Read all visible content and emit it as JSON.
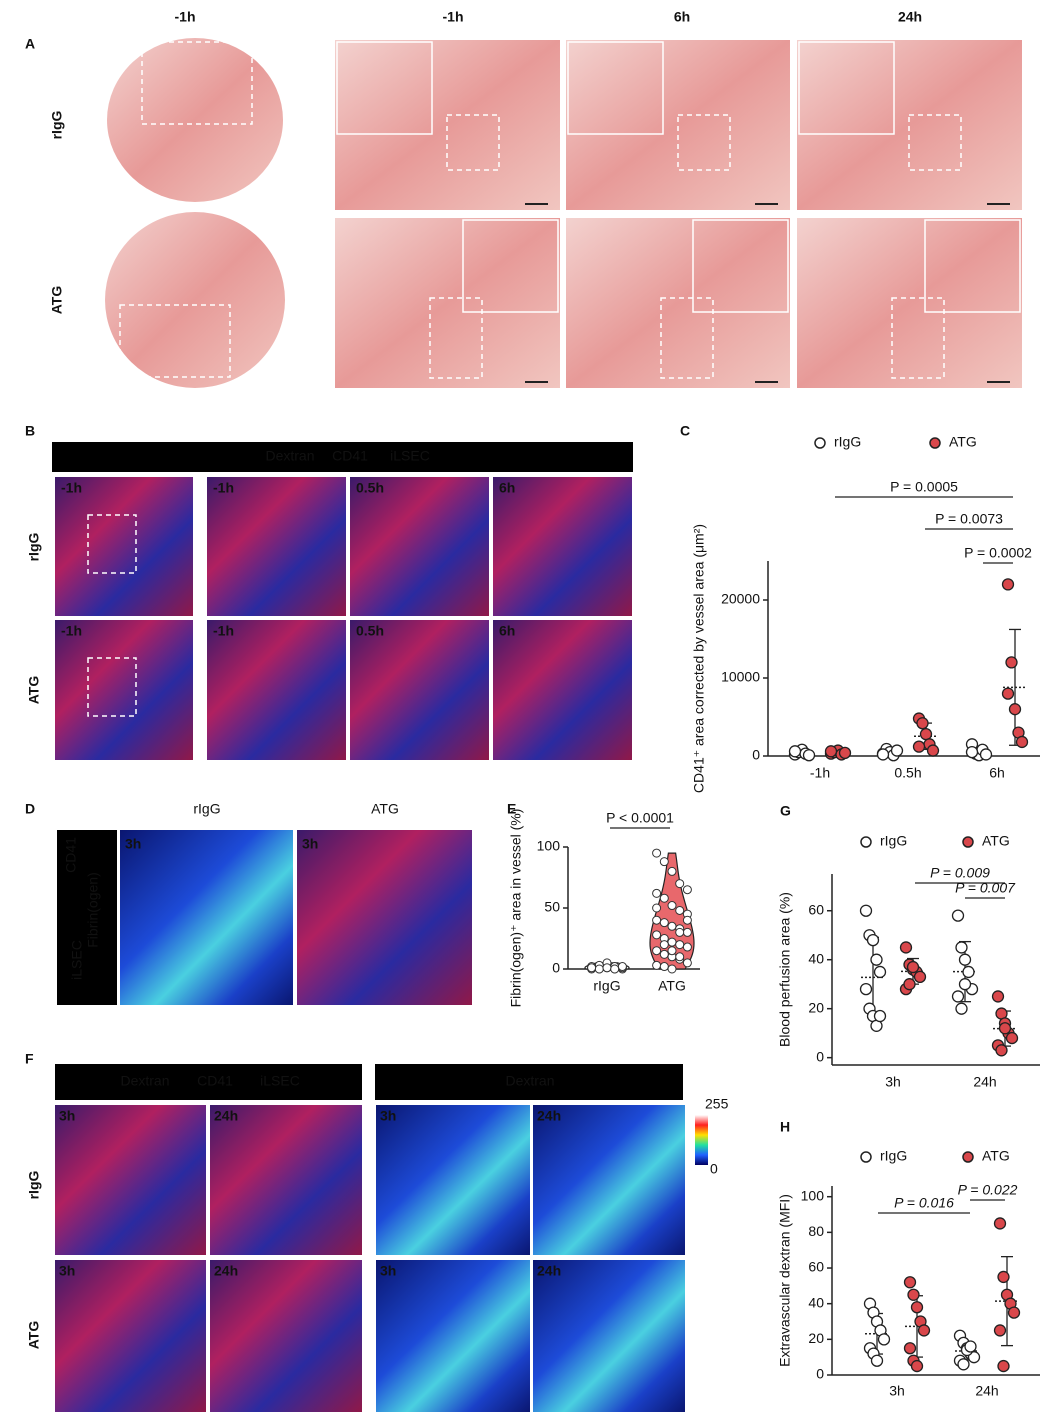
{
  "panels": {
    "A": {
      "letter": "A",
      "rows": [
        "rIgG",
        "ATG"
      ],
      "columns": [
        "-1h",
        "-1h",
        "6h",
        "24h"
      ]
    },
    "B": {
      "letter": "B",
      "stains": [
        "Dextran",
        "CD41",
        "iLSEC"
      ],
      "rows": [
        "rIgG",
        "ATG"
      ],
      "time_labels": [
        [
          "-1h",
          "-1h",
          "0.5h",
          "6h"
        ],
        [
          "-1h",
          "-1h",
          "0.5h",
          "6h"
        ]
      ]
    },
    "C": {
      "letter": "C"
    },
    "D": {
      "letter": "D",
      "columns": [
        "rIgG",
        "ATG"
      ],
      "stains": [
        "iLSEC",
        "Fibrin(ogen)",
        "CD41"
      ],
      "time_labels": [
        "3h",
        "3h"
      ]
    },
    "E": {
      "letter": "E"
    },
    "F": {
      "letter": "F",
      "stains": [
        "Dextran",
        "CD41",
        "iLSEC"
      ],
      "heatmap_title": "Dextran",
      "colorbar_range": [
        0,
        255
      ],
      "rows": [
        "rIgG",
        "ATG"
      ],
      "time_labels": [
        [
          "3h",
          "24h",
          "3h",
          "24h"
        ],
        [
          "3h",
          "24h",
          "3h",
          "24h"
        ]
      ]
    },
    "G": {
      "letter": "G"
    },
    "H": {
      "letter": "H"
    }
  },
  "chart_data": [
    {
      "type": "dot",
      "ylabel": "CD41⁺ area corrected by vessel area (μm²)",
      "categories": [
        "-1h",
        "0.5h",
        "6h"
      ],
      "series": [
        {
          "name": "rIgG",
          "color": "#ffffff",
          "values": [
            [
              200,
              500,
              800,
              300,
              100,
              600
            ],
            [
              300,
              900,
              500,
              100,
              700,
              200
            ],
            [
              1500,
              300,
              100,
              800,
              200,
              500
            ]
          ]
        },
        {
          "name": "ATG",
          "color": "#d9474b",
          "values": [
            [
              300,
              500,
              700,
              200,
              400,
              600
            ],
            [
              4800,
              4200,
              2800,
              1500,
              700,
              1200
            ],
            [
              22000,
              12000,
              6000,
              3000,
              1800,
              8000
            ]
          ]
        }
      ],
      "ylim": [
        0,
        25000
      ],
      "yticks": [
        0,
        10000,
        20000
      ],
      "annotations": [
        "P = 0.0005",
        "P = 0.0073",
        "P = 0.0002"
      ]
    },
    {
      "type": "violin",
      "ylabel": "Fibrin(ogen)⁺ area in vessel (%)",
      "categories": [
        "rIgG",
        "ATG"
      ],
      "colors": [
        "#ffffff",
        "#e8686c"
      ],
      "values": [
        [
          0,
          0,
          1,
          2,
          0,
          1,
          3,
          5,
          0,
          1,
          2,
          0,
          1,
          0,
          2,
          1
        ],
        [
          95,
          88,
          80,
          70,
          65,
          62,
          58,
          52,
          48,
          45,
          40,
          38,
          35,
          33,
          30,
          28,
          25,
          22,
          20,
          18,
          15,
          12,
          10,
          8,
          5,
          3,
          2,
          0,
          30,
          40,
          50,
          20,
          15,
          10
        ]
      ],
      "ylim": [
        0,
        100
      ],
      "yticks": [
        0,
        50,
        100
      ],
      "annotations": [
        "P < 0.0001"
      ]
    },
    {
      "type": "dot",
      "ylabel": "Blood perfusion area (%)",
      "categories": [
        "3h",
        "24h"
      ],
      "series": [
        {
          "name": "rIgG",
          "color": "#ffffff",
          "values": [
            [
              60,
              50,
              48,
              40,
              35,
              28,
              20,
              17,
              13,
              17
            ],
            [
              58,
              45,
              40,
              35,
              28,
              25,
              20,
              30
            ]
          ]
        },
        {
          "name": "ATG",
          "color": "#d9474b",
          "values": [
            [
              45,
              38,
              36,
              35,
              33,
              28,
              30,
              37
            ],
            [
              25,
              18,
              14,
              10,
              8,
              5,
              3,
              12
            ]
          ]
        }
      ],
      "ylim": [
        -3,
        75
      ],
      "yticks": [
        0,
        20,
        40,
        60
      ],
      "annotations": [
        "P = 0.009",
        "P = 0.007"
      ]
    },
    {
      "type": "dot",
      "ylabel": "Extravascular dextran (MFI)",
      "categories": [
        "3h",
        "24h"
      ],
      "series": [
        {
          "name": "rIgG",
          "color": "#ffffff",
          "values": [
            [
              40,
              35,
              30,
              25,
              20,
              15,
              12,
              8
            ],
            [
              22,
              18,
              15,
              12,
              10,
              8,
              6,
              14,
              16
            ]
          ]
        },
        {
          "name": "ATG",
          "color": "#d9474b",
          "values": [
            [
              52,
              45,
              38,
              30,
              25,
              15,
              8,
              5
            ],
            [
              85,
              55,
              45,
              40,
              35,
              25,
              5
            ]
          ]
        }
      ],
      "ylim": [
        0,
        106
      ],
      "yticks": [
        0,
        20,
        40,
        60,
        80,
        100
      ],
      "annotations": [
        "P = 0.016",
        "P = 0.022"
      ]
    }
  ]
}
